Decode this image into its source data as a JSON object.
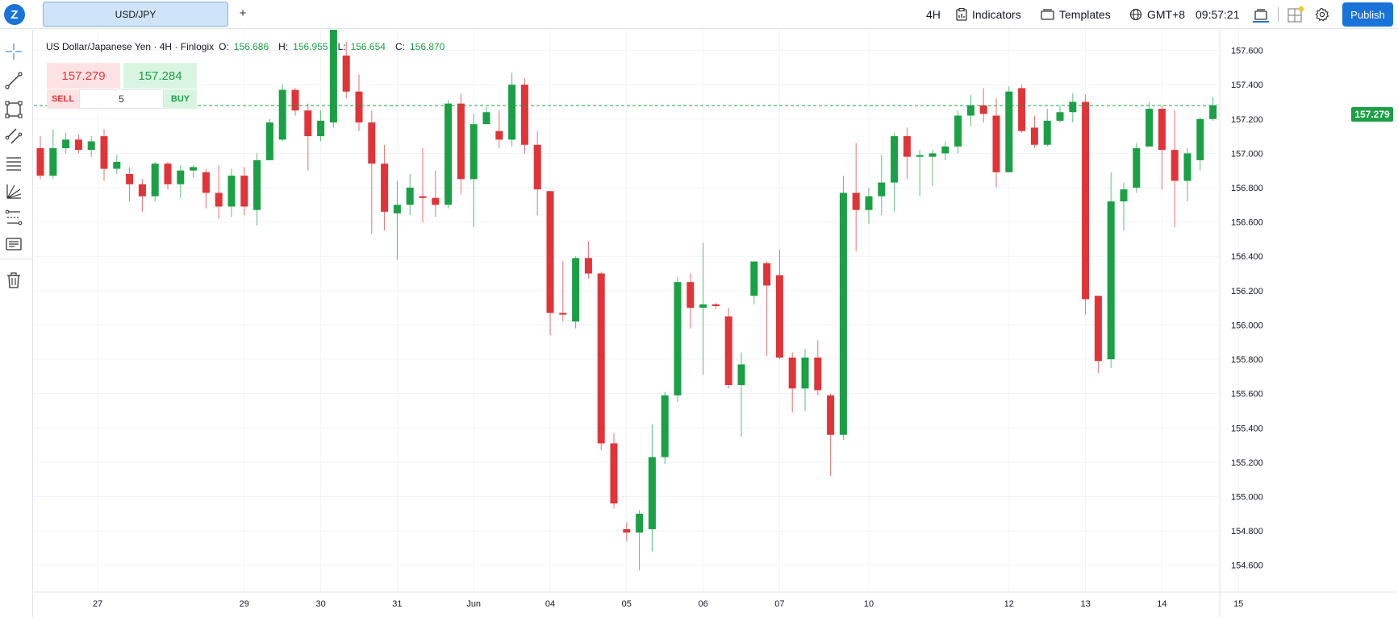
{
  "header": {
    "symbol_tab": "USD/JPY",
    "add_tab": "+",
    "interval": "4H",
    "indicators_label": "Indicators",
    "templates_label": "Templates",
    "timezone": "GMT+8",
    "clock": "09:57:21",
    "publish_label": "Publish"
  },
  "legend": {
    "title": "US Dollar/Japanese Yen · 4H · Finlogix",
    "o_label": "O:",
    "o_value": "156.686",
    "h_label": "H:",
    "h_value": "156.955",
    "l_label": "L:",
    "l_value": "156.654",
    "c_label": "C:",
    "c_value": "156.870"
  },
  "trade": {
    "sell_price": "157.279",
    "buy_price": "157.284",
    "sell_label": "SELL",
    "buy_label": "BUY",
    "quantity": "5"
  },
  "current_price_label": "157.279",
  "colors": {
    "up": "#1aa045",
    "down": "#e03438",
    "accent": "#1a73d9"
  },
  "left_tools": [
    "crosshair-icon",
    "trend-line-icon",
    "rectangle-icon",
    "channel-icon",
    "fib-icon",
    "gann-fan-icon",
    "pattern-icon",
    "text-note-icon",
    "trash-icon"
  ],
  "chart_data": {
    "type": "candlestick",
    "title": "US Dollar/Japanese Yen · 4H · Finlogix",
    "xlabel": "",
    "ylabel": "",
    "ylim": [
      154.5,
      157.72
    ],
    "y_ticks": [
      154.6,
      154.8,
      155.0,
      155.2,
      155.4,
      155.6,
      155.8,
      156.0,
      156.2,
      156.4,
      156.6,
      156.8,
      157.0,
      157.2,
      157.4,
      157.6
    ],
    "x_ticks": [
      {
        "label": "27",
        "index": 4.5
      },
      {
        "label": "29",
        "index": 16
      },
      {
        "label": "30",
        "index": 22
      },
      {
        "label": "31",
        "index": 28
      },
      {
        "label": "Jun",
        "index": 34
      },
      {
        "label": "04",
        "index": 40
      },
      {
        "label": "05",
        "index": 46
      },
      {
        "label": "06",
        "index": 52
      },
      {
        "label": "07",
        "index": 58
      },
      {
        "label": "10",
        "index": 65
      },
      {
        "label": "12",
        "index": 76
      },
      {
        "label": "13",
        "index": 82
      },
      {
        "label": "14",
        "index": 88
      },
      {
        "label": "15",
        "index": 94
      }
    ],
    "current_price": 157.279,
    "grid": true,
    "candles": [
      [
        157.03,
        156.87,
        157.1,
        156.85
      ],
      [
        156.87,
        157.03,
        157.14,
        156.85
      ],
      [
        157.03,
        157.08,
        157.12,
        157.0
      ],
      [
        157.08,
        157.02,
        157.11,
        157.0
      ],
      [
        157.02,
        157.07,
        157.1,
        156.98
      ],
      [
        157.1,
        156.91,
        157.14,
        156.84
      ],
      [
        156.91,
        156.95,
        156.99,
        156.88
      ],
      [
        156.88,
        156.82,
        156.92,
        156.72
      ],
      [
        156.82,
        156.75,
        156.85,
        156.66
      ],
      [
        156.75,
        156.94,
        156.95,
        156.72
      ],
      [
        156.94,
        156.82,
        156.95,
        156.79
      ],
      [
        156.82,
        156.9,
        156.93,
        156.74
      ],
      [
        156.9,
        156.92,
        156.93,
        156.86
      ],
      [
        156.89,
        156.77,
        156.91,
        156.68
      ],
      [
        156.77,
        156.69,
        156.93,
        156.62
      ],
      [
        156.69,
        156.87,
        156.91,
        156.63
      ],
      [
        156.87,
        156.69,
        156.92,
        156.64
      ],
      [
        156.67,
        156.96,
        157.0,
        156.58
      ],
      [
        156.96,
        157.18,
        157.2,
        156.96
      ],
      [
        157.08,
        157.37,
        157.4,
        157.07
      ],
      [
        157.37,
        157.25,
        157.38,
        157.22
      ],
      [
        157.25,
        157.1,
        157.29,
        156.9
      ],
      [
        157.1,
        157.19,
        157.25,
        157.07
      ],
      [
        157.18,
        157.72,
        157.78,
        157.15
      ],
      [
        157.57,
        157.36,
        157.65,
        157.32
      ],
      [
        157.36,
        157.18,
        157.46,
        157.13
      ],
      [
        157.18,
        156.94,
        157.25,
        156.53
      ],
      [
        156.94,
        156.66,
        157.05,
        156.55
      ],
      [
        156.65,
        156.7,
        156.84,
        156.38
      ],
      [
        156.7,
        156.8,
        156.88,
        156.64
      ],
      [
        156.75,
        156.74,
        157.03,
        156.6
      ],
      [
        156.74,
        156.7,
        156.9,
        156.63
      ],
      [
        156.7,
        157.29,
        157.31,
        156.68
      ],
      [
        157.29,
        156.85,
        157.35,
        156.76
      ],
      [
        156.85,
        157.17,
        157.23,
        156.57
      ],
      [
        157.17,
        157.24,
        157.27,
        157.19
      ],
      [
        157.13,
        157.08,
        157.25,
        157.03
      ],
      [
        157.08,
        157.4,
        157.47,
        157.04
      ],
      [
        157.4,
        157.05,
        157.44,
        157.0
      ],
      [
        157.05,
        156.79,
        157.13,
        156.64
      ],
      [
        156.78,
        156.07,
        156.78,
        155.94
      ],
      [
        156.07,
        156.06,
        156.37,
        156.02
      ],
      [
        156.02,
        156.39,
        156.4,
        155.98
      ],
      [
        156.39,
        156.3,
        156.49,
        156.27
      ],
      [
        156.3,
        155.31,
        156.31,
        155.27
      ],
      [
        155.31,
        154.96,
        155.37,
        154.93
      ],
      [
        154.81,
        154.79,
        154.85,
        154.74
      ],
      [
        154.79,
        154.9,
        154.92,
        154.57
      ],
      [
        154.81,
        155.23,
        155.42,
        154.68
      ],
      [
        155.23,
        155.59,
        155.61,
        155.19
      ],
      [
        155.59,
        156.25,
        156.28,
        155.55
      ],
      [
        156.25,
        156.1,
        156.3,
        155.98
      ],
      [
        156.1,
        156.12,
        156.48,
        155.71
      ],
      [
        156.12,
        156.11,
        156.13,
        156.09
      ],
      [
        156.05,
        155.65,
        156.1,
        155.63
      ],
      [
        155.65,
        155.77,
        155.84,
        155.35
      ],
      [
        156.17,
        156.37,
        156.37,
        156.12
      ],
      [
        156.36,
        156.23,
        156.37,
        155.82
      ],
      [
        156.29,
        155.81,
        156.44,
        155.8
      ],
      [
        155.81,
        155.63,
        155.84,
        155.49
      ],
      [
        155.63,
        155.81,
        155.86,
        155.5
      ],
      [
        155.81,
        155.62,
        155.91,
        155.59
      ],
      [
        155.59,
        155.36,
        155.6,
        155.12
      ],
      [
        155.36,
        156.77,
        156.87,
        155.33
      ],
      [
        156.77,
        156.67,
        157.06,
        156.43
      ],
      [
        156.67,
        156.75,
        156.8,
        156.59
      ],
      [
        156.75,
        156.83,
        156.99,
        156.64
      ],
      [
        156.83,
        157.1,
        157.12,
        156.66
      ],
      [
        157.1,
        156.98,
        157.15,
        156.85
      ],
      [
        156.98,
        156.99,
        157.02,
        156.75
      ],
      [
        156.98,
        157.0,
        157.02,
        156.81
      ],
      [
        157.0,
        157.04,
        157.07,
        156.96
      ],
      [
        157.04,
        157.22,
        157.25,
        157.0
      ],
      [
        157.22,
        157.28,
        157.34,
        157.16
      ],
      [
        157.28,
        157.23,
        157.38,
        157.18
      ],
      [
        157.22,
        156.89,
        157.32,
        156.8
      ],
      [
        156.89,
        157.36,
        157.39,
        156.89
      ],
      [
        157.38,
        157.13,
        157.4,
        157.12
      ],
      [
        157.15,
        157.05,
        157.22,
        157.03
      ],
      [
        157.05,
        157.19,
        157.26,
        157.04
      ],
      [
        157.19,
        157.24,
        157.28,
        157.18
      ],
      [
        157.24,
        157.3,
        157.35,
        157.18
      ],
      [
        157.3,
        156.15,
        157.34,
        156.06
      ],
      [
        156.17,
        155.79,
        156.17,
        155.72
      ],
      [
        155.8,
        156.72,
        156.89,
        155.75
      ],
      [
        156.72,
        156.79,
        156.83,
        156.55
      ],
      [
        156.8,
        157.03,
        157.06,
        156.77
      ],
      [
        157.04,
        157.26,
        157.3,
        157.04
      ],
      [
        157.26,
        157.02,
        157.28,
        156.79
      ],
      [
        157.02,
        156.84,
        157.25,
        156.57
      ],
      [
        156.84,
        157.0,
        157.03,
        156.72
      ],
      [
        156.96,
        157.2,
        157.21,
        156.9
      ],
      [
        157.2,
        157.28,
        157.33,
        157.19
      ]
    ]
  }
}
